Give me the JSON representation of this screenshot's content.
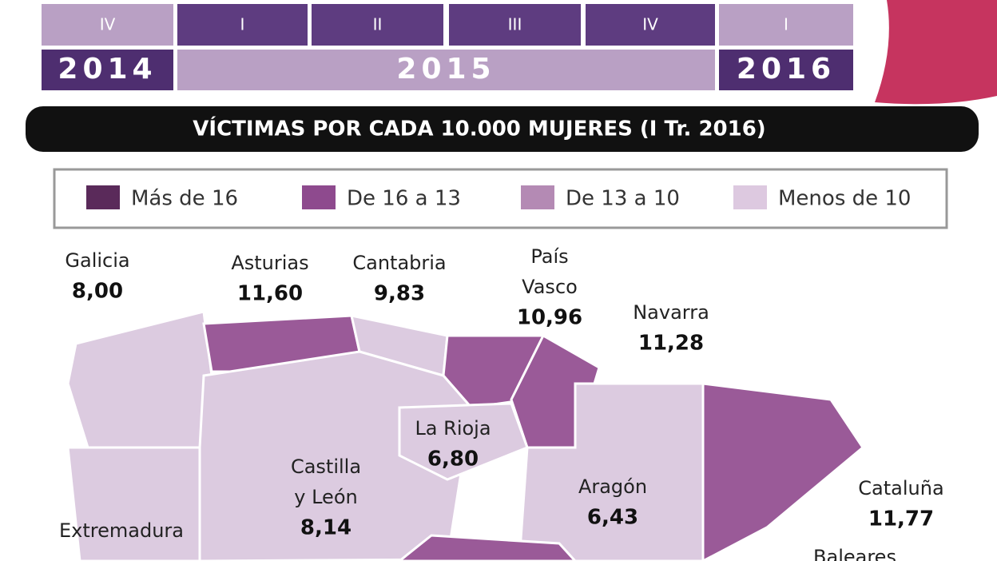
{
  "timeline": {
    "quarters": [
      "IV",
      "I",
      "II",
      "III",
      "IV",
      "I"
    ],
    "years": [
      "2014",
      "2015",
      "2016"
    ]
  },
  "heading": "VÍCTIMAS POR CADA 10.000 MUJERES (I Tr. 2016)",
  "legend": [
    "Más de 16",
    "De 16 a 13",
    "De 13 a 10",
    "Menos de 10"
  ],
  "regions": [
    {
      "label": [
        "Galicia"
      ],
      "value": "8,00"
    },
    {
      "label": [
        "Asturias"
      ],
      "value": "11,60"
    },
    {
      "label": [
        "Cantabria"
      ],
      "value": "9,83"
    },
    {
      "label": [
        "País",
        "Vasco"
      ],
      "value": "10,96"
    },
    {
      "label": [
        "Navarra"
      ],
      "value": "11,28"
    },
    {
      "label": [
        "La Rioja"
      ],
      "value": "6,80"
    },
    {
      "label": [
        "Castilla",
        "y León"
      ],
      "value": "8,14"
    },
    {
      "label": [
        "Aragón"
      ],
      "value": "6,43"
    },
    {
      "label": [
        "Cataluña"
      ],
      "value": "11,77"
    },
    {
      "label": [
        "Extremadura"
      ]
    },
    {
      "label": [
        "Baleares"
      ]
    }
  ]
}
